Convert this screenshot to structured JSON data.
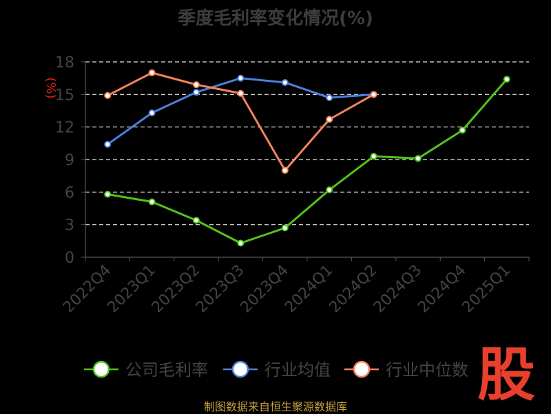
{
  "title": "季度毛利率变化情况(%)",
  "source": "制图数据来自恒生聚源数据库",
  "logo_text": "股",
  "chart_data": {
    "type": "line",
    "title": "季度毛利率变化情况(%)",
    "ylabel": "(%)",
    "xlabel": "",
    "ylim": [
      0,
      18
    ],
    "yticks": [
      0,
      3,
      6,
      9,
      12,
      15,
      18
    ],
    "grid": true,
    "legend_position": "bottom",
    "categories": [
      "2022Q4",
      "2023Q1",
      "2023Q2",
      "2023Q3",
      "2023Q4",
      "2024Q1",
      "2024Q2",
      "2024Q3",
      "2024Q4",
      "2025Q1"
    ],
    "series": [
      {
        "name": "公司毛利率",
        "color": "#52c41a",
        "values": [
          5.8,
          5.1,
          3.4,
          1.3,
          2.7,
          6.2,
          9.3,
          9.1,
          11.7,
          16.4
        ]
      },
      {
        "name": "行业均值",
        "color": "#4f7fe0",
        "values": [
          10.4,
          13.3,
          15.2,
          16.5,
          16.1,
          14.7,
          15.0,
          null,
          null,
          null
        ]
      },
      {
        "name": "行业中位数",
        "color": "#f5845c",
        "values": [
          14.9,
          17.0,
          15.9,
          15.1,
          8.0,
          12.7,
          15.0,
          null,
          null,
          null
        ]
      }
    ]
  }
}
